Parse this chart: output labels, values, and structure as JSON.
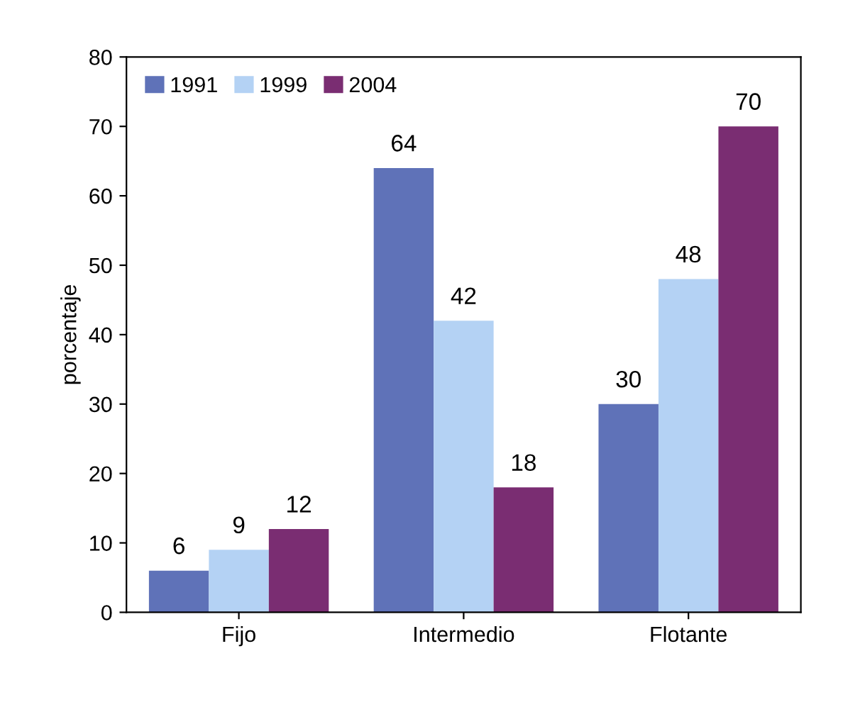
{
  "chart_data": {
    "type": "bar",
    "ylabel": "porcentaje",
    "categories": [
      "Fijo",
      "Intermedio",
      "Flotante"
    ],
    "series": [
      {
        "name": "1991",
        "color": "#5f72b8",
        "values": [
          6,
          64,
          30
        ]
      },
      {
        "name": "1999",
        "color": "#b4d2f4",
        "values": [
          9,
          42,
          48
        ]
      },
      {
        "name": "2004",
        "color": "#7a2d72",
        "values": [
          12,
          18,
          70
        ]
      }
    ],
    "ylim": [
      0,
      80
    ],
    "yticks": [
      0,
      10,
      20,
      30,
      40,
      50,
      60,
      70,
      80
    ],
    "data_labels": true,
    "legend": "top left",
    "grid": false
  }
}
